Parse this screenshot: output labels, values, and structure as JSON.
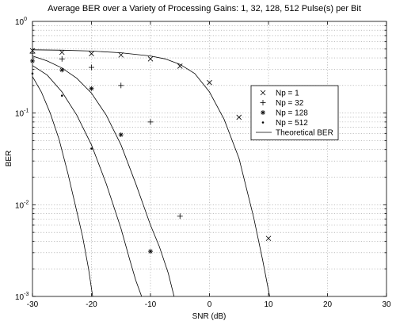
{
  "chart_data": {
    "type": "scatter",
    "title": "Average BER over a Variety of Processing Gains: 1, 32, 128, 512 Pulse(s) per Bit",
    "xlabel": "SNR (dB)",
    "ylabel": "BER",
    "xlim": [
      -30,
      30
    ],
    "ylim": [
      0.001,
      1
    ],
    "yscale": "log",
    "grid": true,
    "legend_position": "right",
    "x_ticks": [
      "-30",
      "-20",
      "-10",
      "0",
      "10",
      "20",
      "30"
    ],
    "x_tick_values": [
      -30,
      -20,
      -10,
      0,
      10,
      20,
      30
    ],
    "y_ticks": [
      {
        "value": 0.001,
        "base": "10",
        "exp": "-3"
      },
      {
        "value": 0.01,
        "base": "10",
        "exp": "-2"
      },
      {
        "value": 0.1,
        "base": "10",
        "exp": "-1"
      },
      {
        "value": 1,
        "base": "10",
        "exp": "0"
      }
    ],
    "series": [
      {
        "name": "Np = 1",
        "marker": "x",
        "x": [
          -30,
          -25,
          -20,
          -15,
          -10,
          -5,
          0,
          5,
          10
        ],
        "y": [
          0.48,
          0.46,
          0.445,
          0.43,
          0.39,
          0.325,
          0.215,
          0.09,
          0.0043
        ]
      },
      {
        "name": "Np = 32",
        "marker": "+",
        "x": [
          -30,
          -25,
          -20,
          -15,
          -10,
          -5
        ],
        "y": [
          0.45,
          0.39,
          0.315,
          0.2,
          0.08,
          0.0075
        ]
      },
      {
        "name": "Np = 128",
        "marker": "*",
        "x": [
          -30,
          -25,
          -20,
          -15,
          -10
        ],
        "y": [
          0.37,
          0.295,
          0.185,
          0.058,
          0.0031
        ]
      },
      {
        "name": "Np = 512",
        "marker": ".",
        "x": [
          -30,
          -25,
          -20
        ],
        "y": [
          0.27,
          0.155,
          0.041
        ]
      }
    ],
    "theoretical": {
      "name": "Theoretical BER",
      "curves": [
        {
          "x": [
            -30,
            -25,
            -20,
            -15,
            -10,
            -7.5,
            -5,
            -2.5,
            0,
            2.5,
            5,
            7.5,
            9,
            10.2
          ],
          "y": [
            0.49,
            0.485,
            0.475,
            0.455,
            0.42,
            0.39,
            0.34,
            0.27,
            0.17,
            0.085,
            0.032,
            0.0072,
            0.0025,
            0.001
          ]
        },
        {
          "x": [
            -30,
            -27.5,
            -25,
            -22.5,
            -20,
            -17.5,
            -15,
            -12.5,
            -10,
            -8.5,
            -7,
            -6
          ],
          "y": [
            0.42,
            0.37,
            0.31,
            0.24,
            0.165,
            0.095,
            0.045,
            0.017,
            0.006,
            0.0035,
            0.0018,
            0.001
          ]
        },
        {
          "x": [
            -30,
            -27.5,
            -25,
            -22.5,
            -20,
            -17.5,
            -15,
            -13.5,
            -12.5,
            -11.5
          ],
          "y": [
            0.33,
            0.26,
            0.17,
            0.095,
            0.045,
            0.017,
            0.0055,
            0.0025,
            0.0015,
            0.001
          ]
        },
        {
          "x": [
            -30,
            -28.5,
            -27,
            -25.5,
            -24,
            -22.5,
            -21.5,
            -20.5,
            -19.8
          ],
          "y": [
            0.25,
            0.17,
            0.1,
            0.052,
            0.022,
            0.0085,
            0.0045,
            0.002,
            0.001
          ]
        }
      ]
    }
  }
}
